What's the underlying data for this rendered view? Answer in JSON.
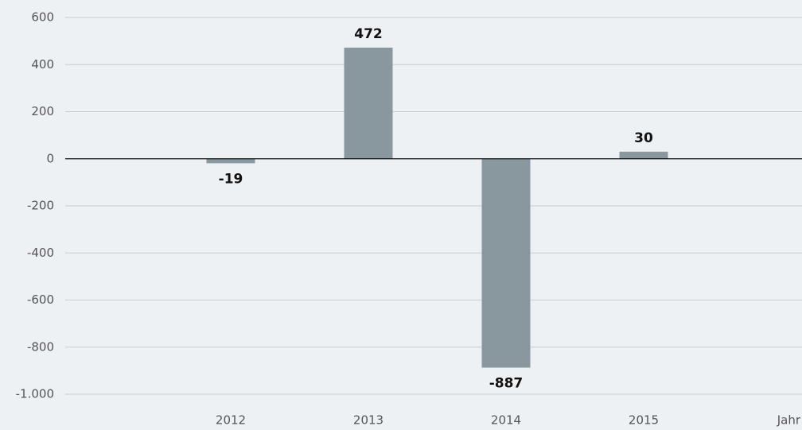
{
  "chart_data": {
    "type": "bar",
    "categories": [
      "2012",
      "2013",
      "2014",
      "2015"
    ],
    "values": [
      -19,
      472,
      -887,
      30
    ],
    "color": "#89979f",
    "x_label": "Jahr",
    "ylim": [
      -1000,
      600
    ],
    "yticks": [
      600,
      400,
      200,
      0,
      -200,
      -400,
      -600,
      -800,
      {
        "value": -1000,
        "label": "-1.000"
      }
    ],
    "grid": true
  }
}
